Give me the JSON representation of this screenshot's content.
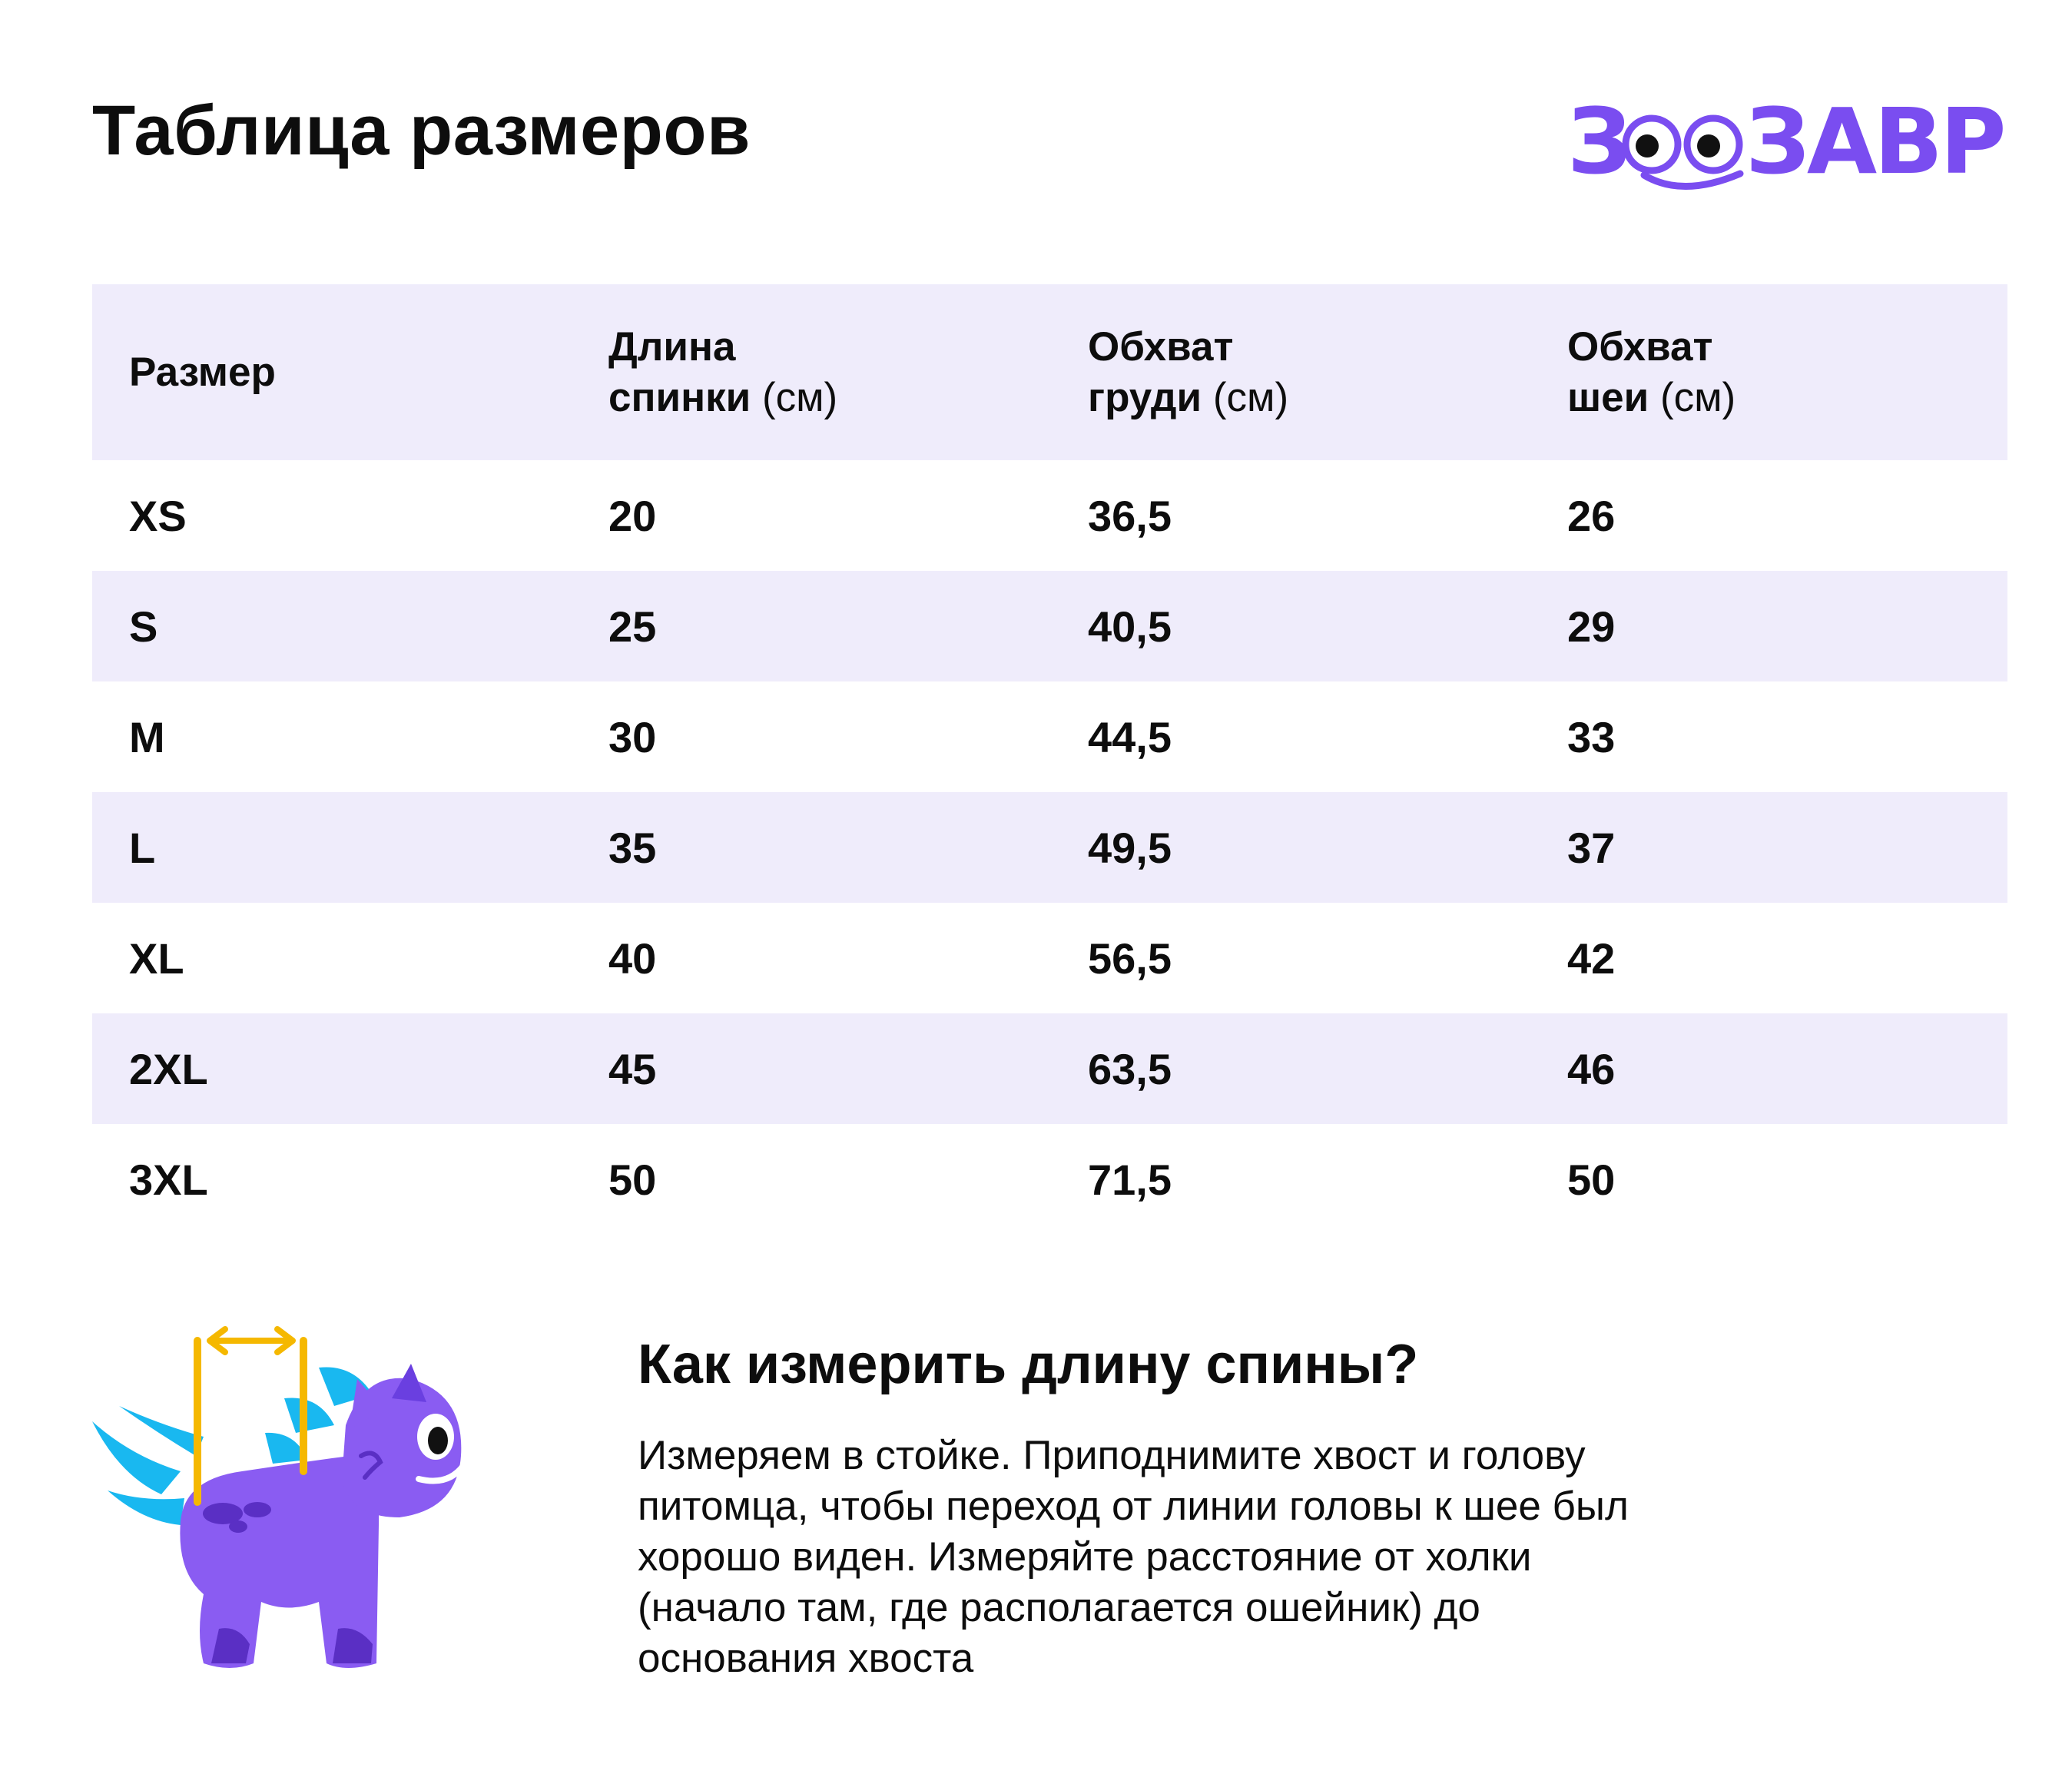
{
  "page": {
    "title": "Таблица размеров"
  },
  "logo": {
    "text": "ЗООЗАВР",
    "color": "#7a4df0"
  },
  "table": {
    "headers": [
      {
        "main": "Размер",
        "line1": "",
        "line2": "",
        "unit": ""
      },
      {
        "main": "",
        "line1": "Длина",
        "line2": "спинки",
        "unit": "(см)"
      },
      {
        "main": "",
        "line1": "Обхват",
        "line2": "груди",
        "unit": "(см)"
      },
      {
        "main": "",
        "line1": "Обхват",
        "line2": "шеи",
        "unit": "(см)"
      }
    ],
    "rows": [
      [
        "XS",
        "20",
        "36,5",
        "26"
      ],
      [
        "S",
        "25",
        "40,5",
        "29"
      ],
      [
        "M",
        "30",
        "44,5",
        "33"
      ],
      [
        "L",
        "35",
        "49,5",
        "37"
      ],
      [
        "XL",
        "40",
        "56,5",
        "42"
      ],
      [
        "2XL",
        "45",
        "63,5",
        "46"
      ],
      [
        "3XL",
        "50",
        "71,5",
        "50"
      ]
    ],
    "stripe_color": "#efecfb"
  },
  "howto": {
    "title": "Как измерить длину спины?",
    "text_lines": [
      "Измеряем в стойке. Приподнимите хвост и голову",
      "питомца, чтобы переход от линии головы к шее был",
      "хорошо виден. Измеряйте расстояние от холки",
      "(начало там, где располагается ошейник) до",
      "основания хвоста"
    ]
  },
  "illustration": {
    "icon": "dino-pet-measure-icon",
    "body_color": "#8a5cf2",
    "spike_color": "#19b8f0",
    "measure_color": "#f5b800"
  }
}
